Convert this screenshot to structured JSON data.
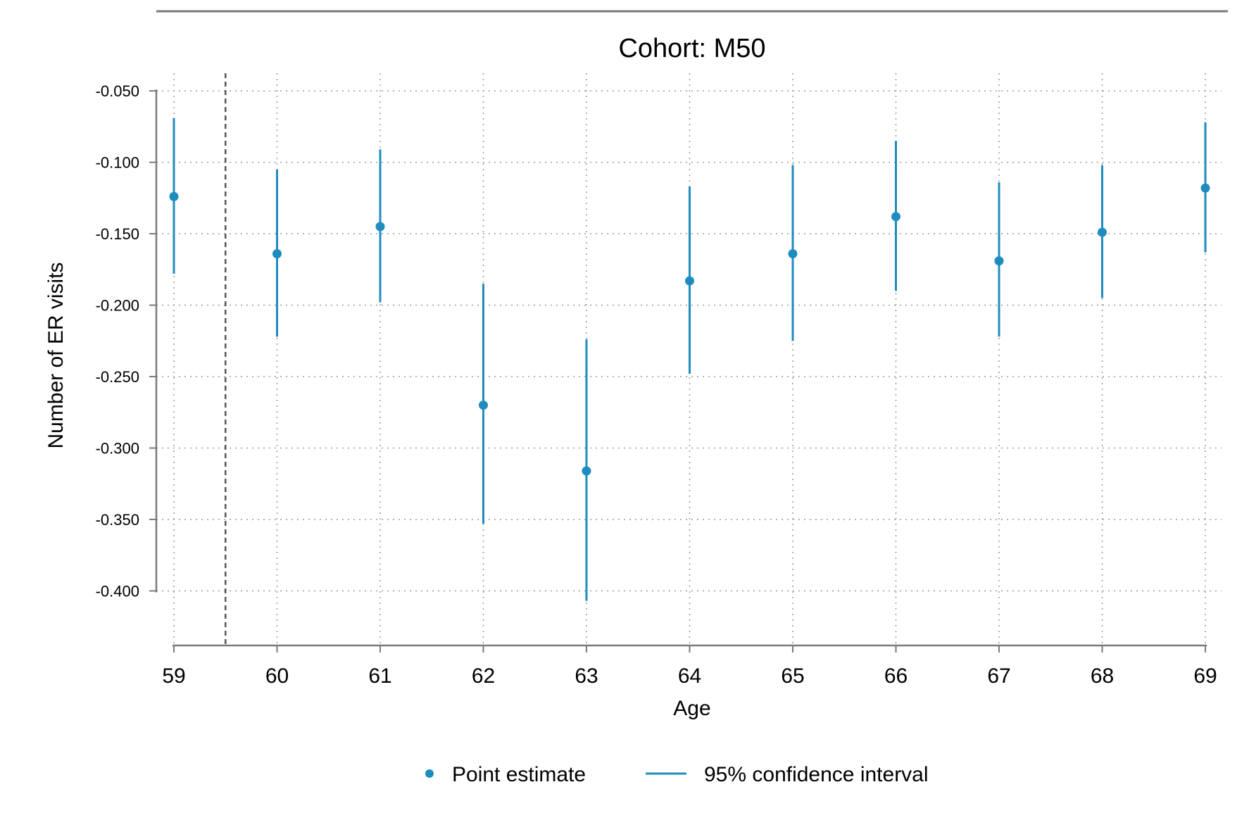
{
  "chart_data": {
    "type": "scatter",
    "title": "Cohort: M50",
    "xlabel": "Age",
    "ylabel": "Number of ER visits",
    "x": [
      59,
      60,
      61,
      62,
      63,
      64,
      65,
      66,
      67,
      68,
      69
    ],
    "x_ticks": [
      "59",
      "60",
      "61",
      "62",
      "63",
      "64",
      "65",
      "66",
      "67",
      "68",
      "69"
    ],
    "y_ticks": [
      "-0.050",
      "-0.100",
      "-0.150",
      "-0.200",
      "-0.250",
      "-0.300",
      "-0.350",
      "-0.400"
    ],
    "y_tick_values": [
      -0.05,
      -0.1,
      -0.15,
      -0.2,
      -0.25,
      -0.3,
      -0.35,
      -0.4
    ],
    "xlim": [
      59,
      69
    ],
    "ylim": [
      -0.418,
      -0.047
    ],
    "grid": true,
    "reference_line_x": 59.5,
    "legend_position": "bottom",
    "series": [
      {
        "name": "Point estimate",
        "values": [
          -0.124,
          -0.164,
          -0.145,
          -0.27,
          -0.316,
          -0.183,
          -0.164,
          -0.138,
          -0.169,
          -0.149,
          -0.118
        ]
      },
      {
        "name": "95% confidence interval",
        "lower": [
          -0.178,
          -0.222,
          -0.198,
          -0.353,
          -0.407,
          -0.248,
          -0.225,
          -0.19,
          -0.222,
          -0.195,
          -0.163
        ],
        "upper": [
          -0.069,
          -0.105,
          -0.091,
          -0.185,
          -0.224,
          -0.117,
          -0.102,
          -0.085,
          -0.114,
          -0.102,
          -0.072
        ]
      }
    ],
    "color": "#1f8cbf",
    "ref_line_color": "#555555",
    "axis_color": "#7a7a7a"
  }
}
